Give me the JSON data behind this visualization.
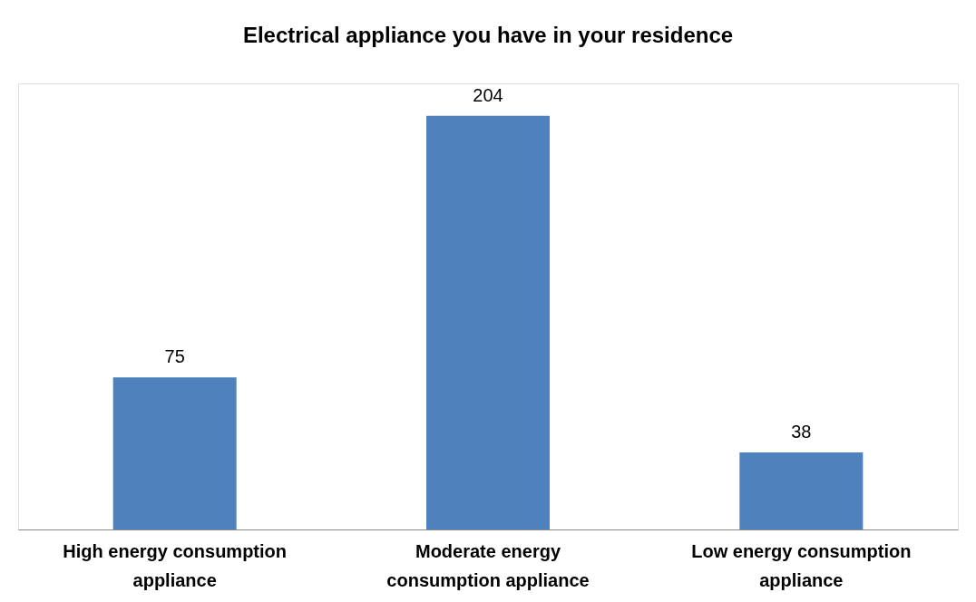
{
  "chart_data": {
    "type": "bar",
    "title": "Electrical appliance you have in your residence",
    "categories": [
      "High energy consumption appliance",
      "Moderate energy consumption appliance",
      "Low energy consumption appliance"
    ],
    "values": [
      75,
      204,
      38
    ],
    "color": "#4f81bd",
    "data_labels": true,
    "grid": false,
    "tick_labels": "x"
  }
}
